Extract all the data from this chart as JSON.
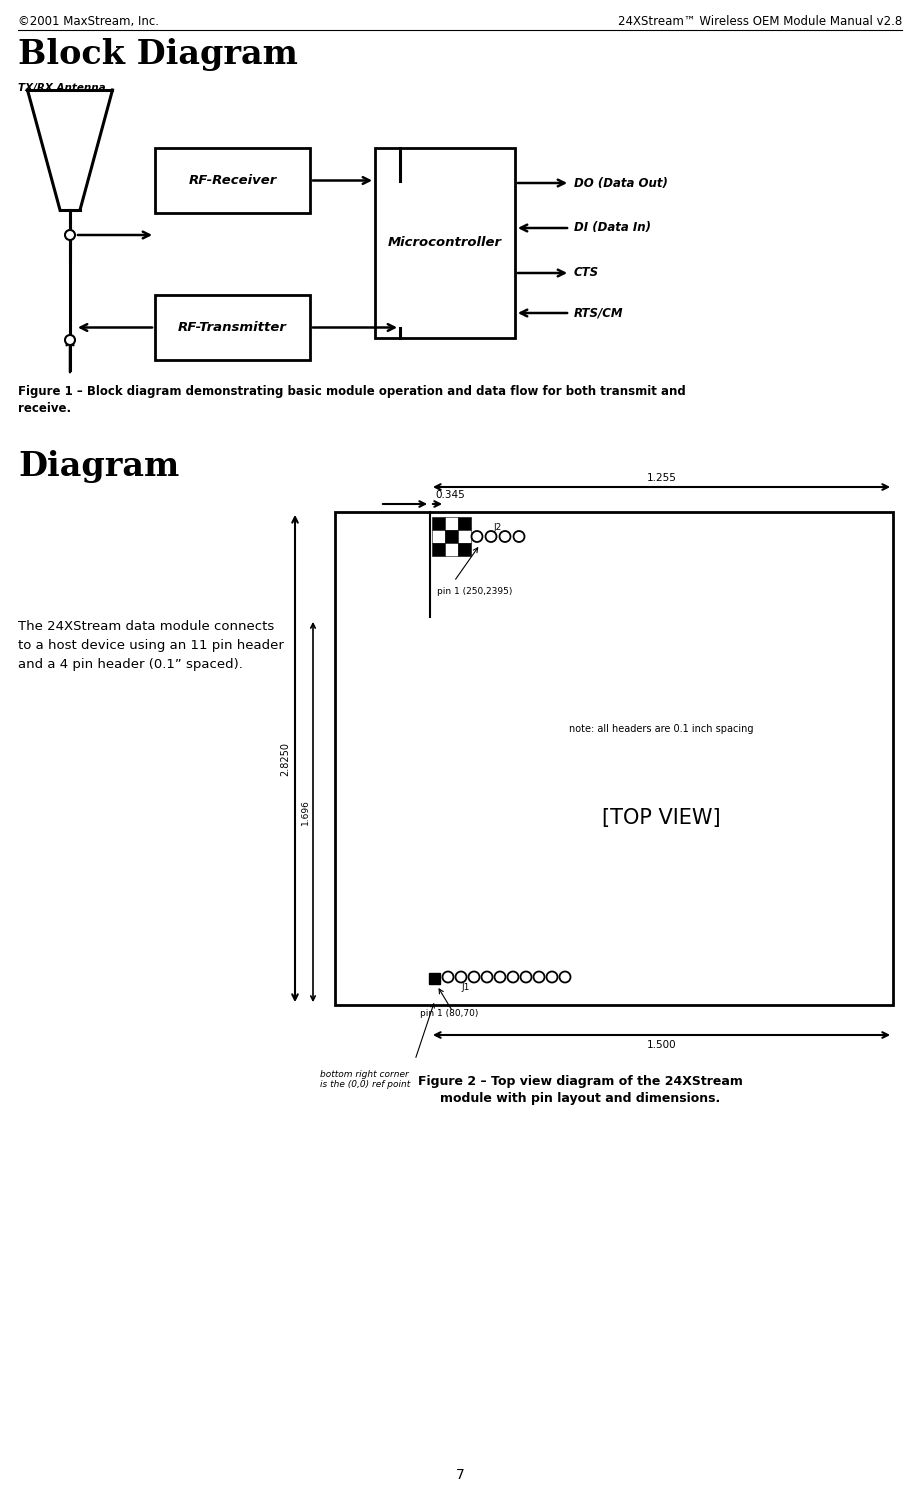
{
  "page_header_left": "©2001 MaxStream, Inc.",
  "page_header_right": "24XStream™ Wireless OEM Module Manual v2.8",
  "section1_title": "Block Diagram",
  "section2_title": "Diagram",
  "figure1_caption": "Figure 1 – Block diagram demonstrating basic module operation and data flow for both transmit and\nreceive.",
  "figure2_caption": "Figure 2 – Top view diagram of the 24XStream\nmodule with pin layout and dimensions.",
  "diagram_text": "The 24XStream data module connects\nto a host device using an 11 pin header\nand a 4 pin header (0.1” spaced).",
  "top_view_label": "[TOP VIEW]",
  "note_text": "note: all headers are 0.1 inch spacing",
  "page_number": "7",
  "bg_color": "#ffffff",
  "text_color": "#000000"
}
